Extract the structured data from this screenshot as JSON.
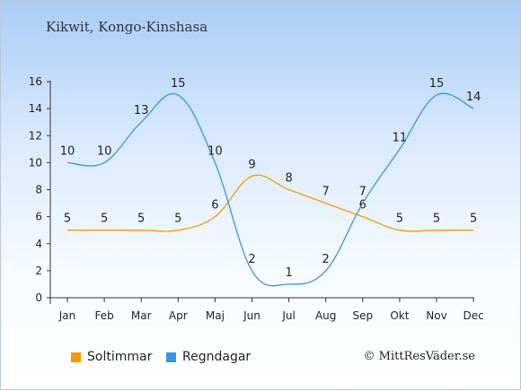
{
  "header": {
    "title": "Kikwit, Kongo-Kinshasa"
  },
  "chart_data": {
    "type": "line",
    "categories": [
      "Jan",
      "Feb",
      "Mar",
      "Apr",
      "Maj",
      "Jun",
      "Jul",
      "Aug",
      "Sep",
      "Okt",
      "Nov",
      "Dec"
    ],
    "series": [
      {
        "name": "Soltimmar",
        "color": "#f59a0a",
        "values": [
          5,
          5,
          5,
          5,
          6,
          9,
          8,
          7,
          6,
          5,
          5,
          5
        ]
      },
      {
        "name": "Regndagar",
        "color": "#3a95e0",
        "values": [
          10,
          10,
          13,
          15,
          10,
          2,
          1,
          2,
          7,
          11,
          15,
          14
        ]
      }
    ],
    "ylim": [
      0,
      16
    ],
    "yticks": [
      0,
      2,
      4,
      6,
      8,
      10,
      12,
      14,
      16
    ],
    "grid": false,
    "legend": "bottom-left"
  },
  "footer": {
    "credit": "© MittResVäder.se"
  }
}
